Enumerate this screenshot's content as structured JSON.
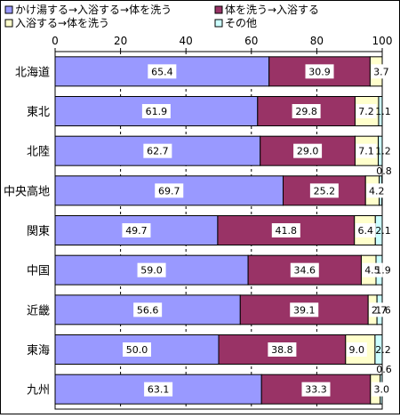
{
  "chart_data": {
    "type": "bar",
    "orientation": "horizontal",
    "stacked": true,
    "xlim": [
      0,
      100
    ],
    "x_ticks": [
      "0",
      "20",
      "40",
      "60",
      "80",
      "100"
    ],
    "grid": "vertical dashed",
    "legend_position": "top",
    "categories": [
      "北海道",
      "東北",
      "北陸",
      "中央高地",
      "関東",
      "中国",
      "近畿",
      "東海",
      "九州"
    ],
    "series": [
      {
        "name": "かけ湯する→入浴する→体を洗う",
        "color": "#9999ff",
        "values": [
          65.4,
          61.9,
          62.7,
          69.7,
          49.7,
          59.0,
          56.6,
          50.0,
          63.1
        ]
      },
      {
        "name": "体を洗う→入浴する",
        "color": "#993366",
        "values": [
          30.9,
          29.8,
          29.0,
          25.2,
          41.8,
          34.6,
          39.1,
          38.8,
          33.3
        ]
      },
      {
        "name": "入浴する→体を洗う",
        "color": "#ffffcc",
        "values": [
          3.7,
          7.2,
          7.1,
          4.2,
          6.4,
          4.5,
          2.7,
          9.0,
          3.0
        ]
      },
      {
        "name": "その他",
        "color": "#ccffff",
        "values": [
          0.0,
          1.1,
          1.2,
          0.8,
          2.1,
          1.9,
          1.6,
          2.2,
          0.6
        ]
      }
    ],
    "value_labels": [
      [
        "65.4",
        "30.9",
        "3.7",
        ""
      ],
      [
        "61.9",
        "29.8",
        "7.2",
        "1.1"
      ],
      [
        "62.7",
        "29.0",
        "7.1",
        "1.2"
      ],
      [
        "69.7",
        "25.2",
        "4.2",
        "0.8"
      ],
      [
        "49.7",
        "41.8",
        "6.4",
        "2.1"
      ],
      [
        "59.0",
        "34.6",
        "4.5",
        "1.9"
      ],
      [
        "56.6",
        "39.1",
        "2.7",
        "1.6"
      ],
      [
        "50.0",
        "38.8",
        "9.0",
        "2.2"
      ],
      [
        "63.1",
        "33.3",
        "3.0",
        "0.6"
      ]
    ],
    "title": "",
    "xlabel": "",
    "ylabel": ""
  }
}
